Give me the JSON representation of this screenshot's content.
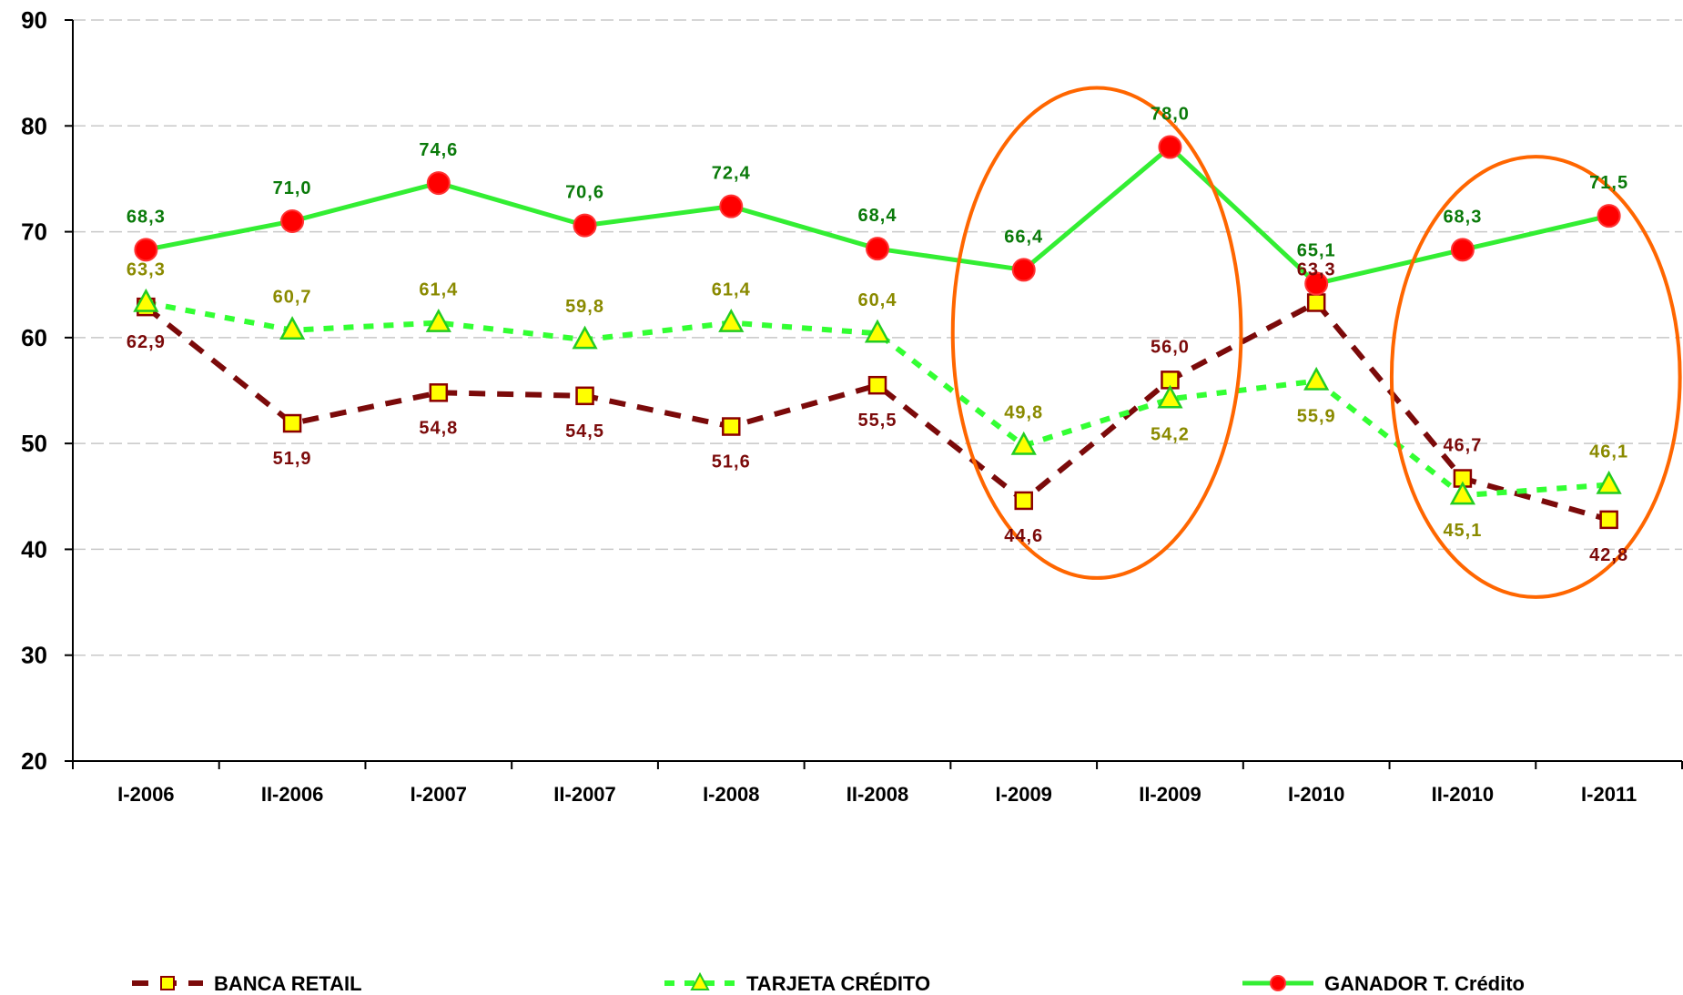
{
  "chart_data": {
    "type": "line",
    "title": "",
    "xlabel": "",
    "ylabel": "",
    "ylim": [
      20,
      90
    ],
    "yticks": [
      "90",
      "80",
      "70",
      "60",
      "50",
      "40",
      "30",
      "20"
    ],
    "categories": [
      "I-2006",
      "II-2006",
      "I-2007",
      "II-2007",
      "I-2008",
      "II-2008",
      "I-2009",
      "II-2009",
      "I-2010",
      "II-2010",
      "I-2011"
    ],
    "grid": "horizontal dashed",
    "legend_position": "bottom",
    "series": [
      {
        "name": "BANCA RETAIL",
        "style": "dashed",
        "marker": "square",
        "line_color": "#7b0a0a",
        "marker_fill": "#ffff00",
        "marker_stroke": "#8b0000",
        "label_color": "#7b0a0a",
        "values": [
          62.9,
          51.9,
          54.8,
          54.5,
          51.6,
          55.5,
          44.6,
          56.0,
          63.3,
          46.7,
          42.8
        ],
        "labels": [
          "62,9",
          "51,9",
          "54,8",
          "54,5",
          "51,6",
          "55,5",
          "44,6",
          "56,0",
          "63,3",
          "46,7",
          "42,8"
        ]
      },
      {
        "name": "TARJETA CRÉDITO",
        "style": "dotted",
        "marker": "triangle",
        "line_color": "#33ff33",
        "marker_fill": "#ffff00",
        "marker_stroke": "#22cc22",
        "label_color": "#8a8a00",
        "values": [
          63.3,
          60.7,
          61.4,
          59.8,
          61.4,
          60.4,
          49.8,
          54.2,
          55.9,
          45.1,
          46.1
        ],
        "labels": [
          "63,3",
          "60,7",
          "61,4",
          "59,8",
          "61,4",
          "60,4",
          "49,8",
          "54,2",
          "55,9",
          "45,1",
          "46,1"
        ]
      },
      {
        "name": "GANADOR T. Crédito",
        "style": "solid",
        "marker": "circle",
        "line_color": "#33ee33",
        "marker_fill": "#ff0000",
        "marker_stroke": "#ff3333",
        "label_color": "#0a7a0a",
        "values": [
          68.3,
          71.0,
          74.6,
          70.6,
          72.4,
          68.4,
          66.4,
          78.0,
          65.1,
          68.3,
          71.5
        ],
        "labels": [
          "68,3",
          "71,0",
          "74,6",
          "70,6",
          "72,4",
          "68,4",
          "66,4",
          "78,0",
          "65,1",
          "68,3",
          "71,5"
        ]
      }
    ],
    "annotations": [
      {
        "type": "ellipse",
        "color": "#ff6600",
        "around": [
          "I-2009",
          "II-2009"
        ]
      },
      {
        "type": "ellipse",
        "color": "#ff6600",
        "around": [
          "II-2010",
          "I-2011"
        ]
      }
    ]
  }
}
